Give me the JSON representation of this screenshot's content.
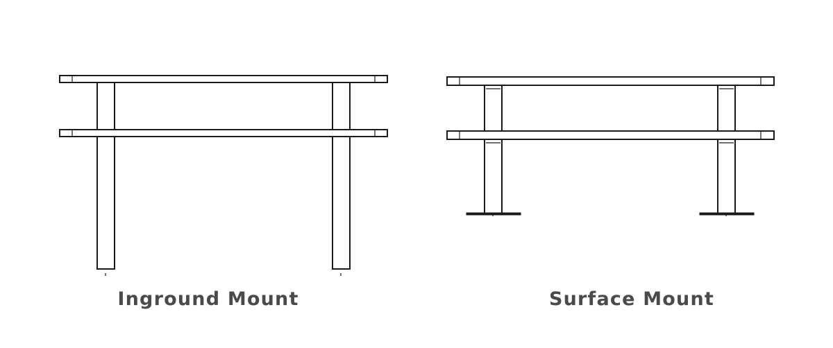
{
  "diagrams": [
    {
      "id": "inground",
      "caption": "Inground Mount"
    },
    {
      "id": "surface",
      "caption": "Surface Mount"
    }
  ],
  "colors": {
    "caption_text": "#4a4a4a",
    "line": "#1a1a1a",
    "background": "#ffffff"
  }
}
